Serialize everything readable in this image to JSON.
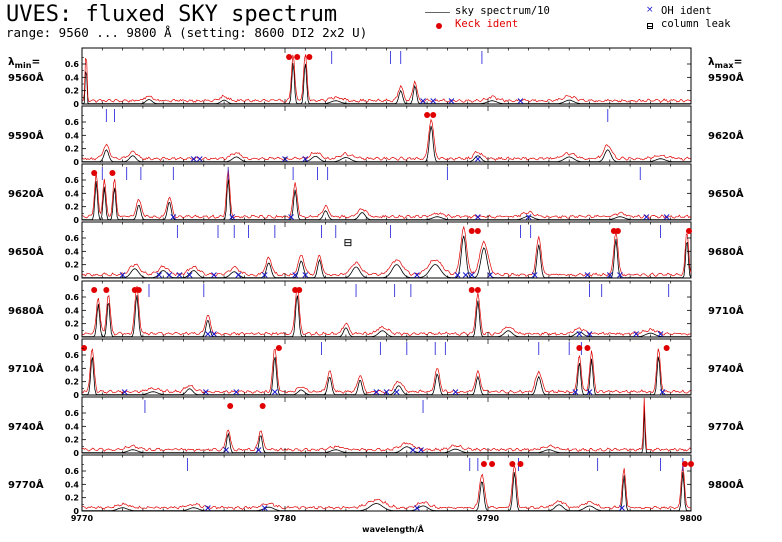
{
  "header": {
    "title": "UVES: fluxed SKY spectrum",
    "subtitle": "range: 9560 ... 9800 Å (setting: 8600 DI2 2x2 U)"
  },
  "legend": {
    "sky_label": "sky spectrum/10",
    "keck_label": "Keck ident",
    "oh_label": "OH ident",
    "leak_label": "column leak"
  },
  "side": {
    "lmin_symbol": "λ",
    "lmin_sub": "min",
    "lmax_symbol": "λ",
    "lmax_sub": "max",
    "left_labels": [
      "9560Å",
      "9590Å",
      "9620Å",
      "9650Å",
      "9680Å",
      "9710Å",
      "9740Å",
      "9770Å"
    ],
    "right_labels": [
      "9590Å",
      "9620Å",
      "9650Å",
      "9680Å",
      "9710Å",
      "9740Å",
      "9770Å",
      "9800Å"
    ]
  },
  "chart_data": {
    "type": "line",
    "xlabel": "wavelength/Å",
    "x_ticks": [
      "9770",
      "9780",
      "9790",
      "9800"
    ],
    "y_ticks": [
      "0",
      "0.2",
      "0.4",
      "0.6"
    ],
    "ylim": [
      0,
      0.75
    ],
    "colors": {
      "fluxed": "#e00000",
      "sky_div10": "#000000",
      "oh_mark": "#1a1acc",
      "ident_line": "#3333dd",
      "keck_dot": "#e00000"
    },
    "panels": [
      {
        "range": [
          9560,
          9590
        ],
        "peaks": [
          [
            9560.2,
            0.8,
            0.04
          ],
          [
            9563.3,
            0.07,
            0.2
          ],
          [
            9567.0,
            0.06,
            0.2
          ],
          [
            9570.4,
            0.7,
            0.08
          ],
          [
            9571.0,
            0.7,
            0.08
          ],
          [
            9572.5,
            0.05,
            0.3
          ],
          [
            9575.7,
            0.22,
            0.12
          ],
          [
            9576.4,
            0.3,
            0.1
          ],
          [
            9580.2,
            0.05,
            0.3
          ],
          [
            9584.0,
            0.06,
            0.3
          ]
        ],
        "oh": [
          9576.8,
          9577.3,
          9578.2,
          9581.6
        ],
        "keck": [
          9570.2,
          9570.6,
          9571.2
        ],
        "ident_lines": [
          9572.3,
          9575.2,
          9575.7,
          9579.7
        ]
      },
      {
        "range": [
          9590,
          9620
        ],
        "peaks": [
          [
            9591.2,
            0.2,
            0.15
          ],
          [
            9592.5,
            0.1,
            0.2
          ],
          [
            9597.6,
            0.08,
            0.25
          ],
          [
            9601.5,
            0.09,
            0.25
          ],
          [
            9603.0,
            0.07,
            0.3
          ],
          [
            9607.2,
            0.6,
            0.12
          ],
          [
            9609.5,
            0.1,
            0.2
          ],
          [
            9614.0,
            0.08,
            0.3
          ],
          [
            9615.9,
            0.2,
            0.2
          ],
          [
            9618.5,
            0.05,
            0.3
          ]
        ],
        "oh": [
          9595.5,
          9595.8,
          9600.0,
          9601.0,
          9609.5
        ],
        "keck": [
          9607.0,
          9607.3
        ],
        "ident_lines": [
          9591.2,
          9591.6,
          9615.9
        ]
      },
      {
        "range": [
          9620,
          9650
        ],
        "peaks": [
          [
            9620.7,
            0.65,
            0.08
          ],
          [
            9621.1,
            0.55,
            0.08
          ],
          [
            9621.6,
            0.55,
            0.08
          ],
          [
            9622.8,
            0.25,
            0.12
          ],
          [
            9624.3,
            0.3,
            0.12
          ],
          [
            9627.2,
            0.7,
            0.08
          ],
          [
            9630.5,
            0.5,
            0.1
          ],
          [
            9632.0,
            0.15,
            0.15
          ],
          [
            9633.8,
            0.12,
            0.2
          ],
          [
            9637.5,
            0.05,
            0.3
          ],
          [
            9642.0,
            0.06,
            0.3
          ],
          [
            9646.5,
            0.05,
            0.3
          ]
        ],
        "oh": [
          9624.5,
          9627.4,
          9630.3,
          9639.5,
          9642.0,
          9647.8,
          9648.8
        ],
        "keck": [
          9620.6,
          9621.5
        ],
        "ident_lines": [
          9621.0,
          9622.2,
          9622.9,
          9624.5,
          9627.2,
          9630.4,
          9631.6,
          9632.1,
          9638.0,
          9647.5
        ]
      },
      {
        "range": [
          9650,
          9680
        ],
        "peaks": [
          [
            9652.6,
            0.15,
            0.25
          ],
          [
            9654.0,
            0.12,
            0.25
          ],
          [
            9655.5,
            0.12,
            0.25
          ],
          [
            9657.5,
            0.1,
            0.25
          ],
          [
            9659.2,
            0.25,
            0.15
          ],
          [
            9660.8,
            0.28,
            0.15
          ],
          [
            9661.7,
            0.3,
            0.12
          ],
          [
            9663.5,
            0.18,
            0.25
          ],
          [
            9665.5,
            0.22,
            0.3
          ],
          [
            9667.4,
            0.22,
            0.35
          ],
          [
            9668.8,
            0.7,
            0.15
          ],
          [
            9669.8,
            0.5,
            0.2
          ],
          [
            9672.5,
            0.55,
            0.12
          ],
          [
            9676.3,
            0.65,
            0.1
          ],
          [
            9679.8,
            0.65,
            0.08
          ]
        ],
        "oh": [
          9652.0,
          9653.8,
          9654.3,
          9654.8,
          9655.3,
          9656.5,
          9657.7,
          9659.0,
          9660.5,
          9661.0,
          9666.5,
          9668.5,
          9668.9,
          9669.2,
          9670.1,
          9672.3,
          9674.9,
          9676.0,
          9676.5
        ],
        "keck": [
          9669.2,
          9669.5,
          9676.2,
          9676.4,
          9679.9
        ],
        "ident_lines": [
          9654.7,
          9656.7,
          9657.5,
          9658.2,
          9659.5,
          9661.8,
          9662.5,
          9665.2,
          9671.6,
          9672.1,
          9678.5
        ]
      },
      {
        "range": [
          9680,
          9710
        ],
        "peaks": [
          [
            9680.8,
            0.55,
            0.09
          ],
          [
            9681.3,
            0.6,
            0.09
          ],
          [
            9682.7,
            0.7,
            0.1
          ],
          [
            9686.2,
            0.28,
            0.12
          ],
          [
            9690.6,
            0.7,
            0.1
          ],
          [
            9693.0,
            0.15,
            0.15
          ],
          [
            9694.8,
            0.1,
            0.25
          ],
          [
            9699.5,
            0.6,
            0.1
          ],
          [
            9701.0,
            0.1,
            0.25
          ],
          [
            9704.5,
            0.08,
            0.25
          ],
          [
            9708.0,
            0.06,
            0.3
          ]
        ],
        "oh": [
          9686.2,
          9686.5,
          9704.5,
          9705.0,
          9707.3,
          9708.5
        ],
        "keck": [
          9680.6,
          9681.2,
          9682.6,
          9682.8,
          9690.5,
          9690.7,
          9699.2,
          9699.5
        ],
        "ident_lines": [
          9683.3,
          9686.0,
          9693.5,
          9695.4,
          9696.2,
          9705.0,
          9705.6,
          9708.9
        ]
      },
      {
        "range": [
          9710,
          9740
        ],
        "peaks": [
          [
            9710.5,
            0.65,
            0.09
          ],
          [
            9713.5,
            0.05,
            0.3
          ],
          [
            9715.3,
            0.1,
            0.2
          ],
          [
            9719.5,
            0.65,
            0.1
          ],
          [
            9720.8,
            0.08,
            0.2
          ],
          [
            9722.2,
            0.3,
            0.12
          ],
          [
            9723.7,
            0.25,
            0.12
          ],
          [
            9725.6,
            0.15,
            0.2
          ],
          [
            9727.5,
            0.35,
            0.12
          ],
          [
            9729.5,
            0.3,
            0.12
          ],
          [
            9732.5,
            0.3,
            0.15
          ],
          [
            9734.5,
            0.55,
            0.09
          ],
          [
            9735.1,
            0.6,
            0.09
          ],
          [
            9738.4,
            0.65,
            0.09
          ]
        ],
        "oh": [
          9712.1,
          9716.1,
          9717.6,
          9719.5,
          9724.5,
          9725.0,
          9725.5,
          9728.4,
          9734.3,
          9735.0,
          9738.6
        ],
        "keck": [
          9710.1,
          9719.7,
          9734.5,
          9734.9,
          9738.8
        ],
        "ident_lines": [
          9721.8,
          9724.7,
          9726.0,
          9727.4,
          9727.9,
          9732.5,
          9734.0,
          9734.6
        ]
      },
      {
        "range": [
          9740,
          9770
        ],
        "peaks": [
          [
            9742.5,
            0.05,
            0.3
          ],
          [
            9747.2,
            0.32,
            0.1
          ],
          [
            9748.8,
            0.3,
            0.1
          ],
          [
            9752.5,
            0.05,
            0.3
          ],
          [
            9756.0,
            0.1,
            0.3
          ],
          [
            9758.4,
            0.06,
            0.3
          ],
          [
            9763.0,
            0.05,
            0.3
          ],
          [
            9767.7,
            0.8,
            0.04
          ]
        ],
        "oh": [
          9747.1,
          9748.7,
          9756.3,
          9756.7
        ],
        "keck": [
          9747.3,
          9748.9
        ],
        "ident_lines": [
          9743.1,
          9756.8
        ]
      },
      {
        "range": [
          9770,
          9800
        ],
        "peaks": [
          [
            9772.0,
            0.05,
            0.3
          ],
          [
            9775.5,
            0.05,
            0.3
          ],
          [
            9779.2,
            0.06,
            0.3
          ],
          [
            9784.5,
            0.12,
            0.4
          ],
          [
            9786.8,
            0.08,
            0.3
          ],
          [
            9789.7,
            0.5,
            0.12
          ],
          [
            9791.3,
            0.65,
            0.1
          ],
          [
            9793.5,
            0.1,
            0.25
          ],
          [
            9795.0,
            0.08,
            0.3
          ],
          [
            9796.7,
            0.6,
            0.08
          ],
          [
            9799.6,
            0.65,
            0.08
          ]
        ],
        "oh": [
          9776.2,
          9779.0,
          9786.5,
          9796.6
        ],
        "keck": [
          9789.8,
          9790.2,
          9791.2,
          9791.6,
          9799.7,
          9800.0
        ],
        "ident_lines": [
          9775.2,
          9789.1,
          9789.5,
          9791.5,
          9795.4,
          9798.5,
          9799.6
        ]
      }
    ],
    "column_leak": {
      "panel": 3,
      "x": 9663.1,
      "y": 0.53
    }
  }
}
